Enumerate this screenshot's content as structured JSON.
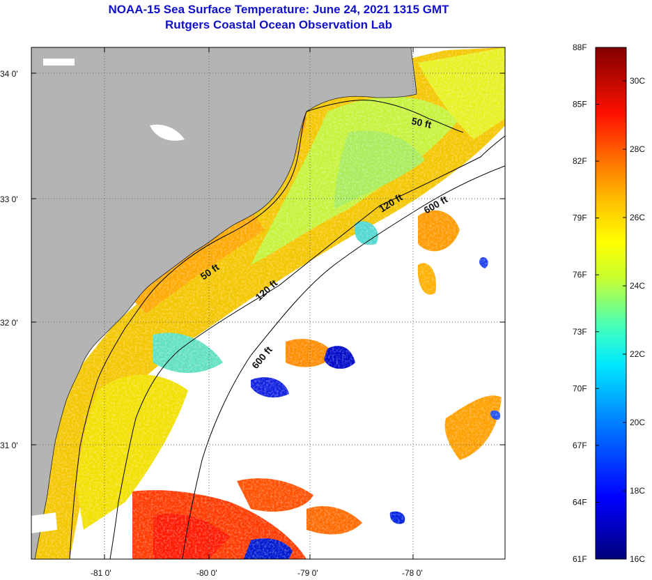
{
  "header": {
    "title_line1": "NOAA-15 Sea Surface Temperature:  June 24, 2021 1315 GMT",
    "title_line2": "Rutgers Coastal Ocean Observation Lab"
  },
  "map": {
    "lon_ticks": [
      "-81 0'",
      "-80 0'",
      "-79 0'",
      "-78 0'"
    ],
    "lat_ticks": [
      "34 0'",
      "33 0'",
      "32 0'",
      "31 0'"
    ],
    "contours": [
      "50 ft",
      "50 ft",
      "120 ft",
      "120 ft",
      "600 ft",
      "600 ft"
    ]
  },
  "colorbar": {
    "f_labels": [
      "88F",
      "85F",
      "82F",
      "79F",
      "76F",
      "73F",
      "70F",
      "67F",
      "64F",
      "61F"
    ],
    "c_labels": [
      "30C",
      "28C",
      "26C",
      "24C",
      "22C",
      "20C",
      "18C",
      "16C"
    ]
  },
  "colors": {
    "land": "#b4b4b4",
    "cloud": "#ffffff",
    "title": "#1010c8"
  }
}
